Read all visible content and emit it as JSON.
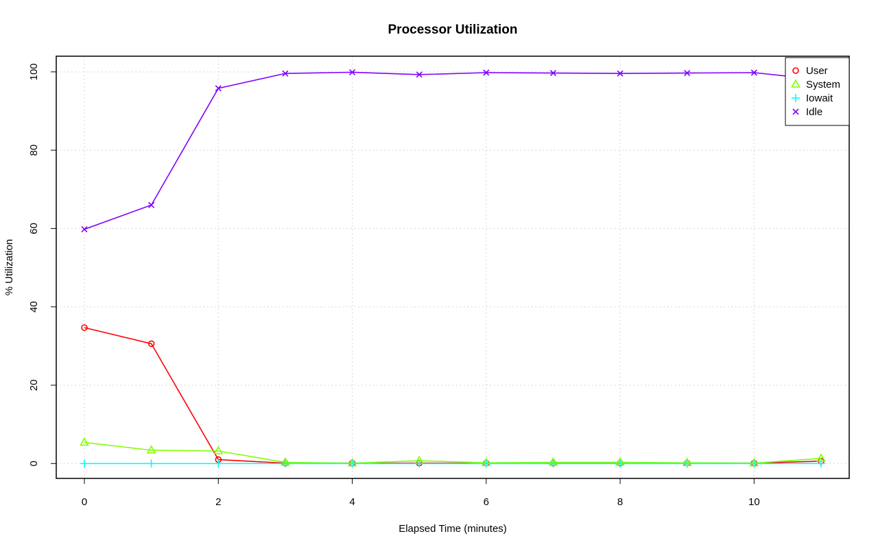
{
  "chart_data": {
    "type": "line",
    "title": "Processor Utilization",
    "xlabel": "Elapsed Time (minutes)",
    "ylabel": "% Utilization",
    "xlim": [
      -0.42,
      11.42
    ],
    "ylim": [
      -3.8,
      104.0
    ],
    "xticks": [
      0,
      2,
      4,
      6,
      8,
      10
    ],
    "yticks": [
      0,
      20,
      40,
      60,
      80,
      100
    ],
    "grid": true,
    "legend_position": "top-right",
    "x": [
      0,
      1,
      2,
      3,
      4,
      5,
      6,
      7,
      8,
      9,
      10,
      11
    ],
    "series": [
      {
        "name": "User",
        "color": "#ff0000",
        "marker": "circle",
        "values": [
          34.7,
          30.6,
          1.0,
          0.1,
          0.1,
          0.1,
          0.1,
          0.1,
          0.1,
          0.1,
          0.1,
          0.6
        ]
      },
      {
        "name": "System",
        "color": "#80ff00",
        "marker": "triangle",
        "values": [
          5.4,
          3.4,
          3.2,
          0.3,
          0.1,
          0.7,
          0.2,
          0.3,
          0.3,
          0.2,
          0.1,
          1.3
        ]
      },
      {
        "name": "Iowait",
        "color": "#00ffff",
        "marker": "plus",
        "values": [
          0.0,
          0.0,
          0.0,
          0.0,
          0.0,
          0.0,
          0.0,
          0.0,
          0.0,
          0.0,
          0.0,
          0.0
        ]
      },
      {
        "name": "Idle",
        "color": "#8000ff",
        "marker": "x",
        "values": [
          59.8,
          66.0,
          95.8,
          99.6,
          99.9,
          99.3,
          99.8,
          99.7,
          99.6,
          99.7,
          99.8,
          98.0
        ]
      }
    ]
  }
}
